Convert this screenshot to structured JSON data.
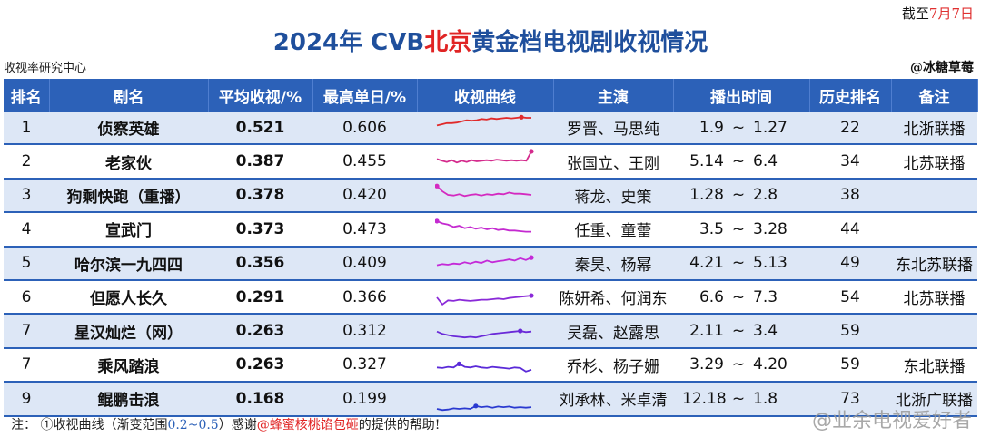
{
  "deadline": {
    "prefix": "截至",
    "date": "7月7日"
  },
  "title": {
    "part1": "2024年 CVB",
    "highlight": "北京",
    "part2": "黄金档电视剧收视情况"
  },
  "source": "收视率研究中心",
  "author": "@冰糖草莓",
  "headers": [
    "排名",
    "剧名",
    "平均收视/%",
    "最高单日/%",
    "收视曲线",
    "主演",
    "播出时间",
    "历史排名",
    "备注"
  ],
  "rows": [
    {
      "rank": "1",
      "name": "侦察英雄",
      "avg": "0.521",
      "max": "0.606",
      "actors": "罗晋、马思纯",
      "start": "1.9",
      "tilde": "~",
      "end": "1.27",
      "hist": "22",
      "note": "北浙联播",
      "color": "#e02a2a",
      "curve": [
        0.36,
        0.38,
        0.4,
        0.4,
        0.41,
        0.43,
        0.45,
        0.44,
        0.45,
        0.47,
        0.46,
        0.48,
        0.47,
        0.48,
        0.49,
        0.48,
        0.49,
        0.5,
        0.49,
        0.49
      ]
    },
    {
      "rank": "2",
      "name": "老家伙",
      "avg": "0.387",
      "max": "0.455",
      "actors": "张国立、王刚",
      "start": "5.14",
      "tilde": "~",
      "end": "6.4",
      "hist": "34",
      "note": "北苏联播",
      "color": "#d42a8c",
      "curve": [
        0.36,
        0.33,
        0.31,
        0.34,
        0.3,
        0.33,
        0.31,
        0.34,
        0.32,
        0.33,
        0.34,
        0.33,
        0.35,
        0.34,
        0.33,
        0.34,
        0.33,
        0.34,
        0.33,
        0.49
      ]
    },
    {
      "rank": "3",
      "name": "狗剩快跑（重播）",
      "avg": "0.378",
      "max": "0.420",
      "actors": "蒋龙、史策",
      "start": "1.28",
      "tilde": "~",
      "end": "2.8",
      "hist": "38",
      "note": "",
      "color": "#d42ac0",
      "curve": [
        0.47,
        0.38,
        0.32,
        0.31,
        0.33,
        0.3,
        0.32,
        0.33,
        0.31,
        0.33,
        0.32,
        0.34,
        0.33,
        0.36,
        0.34,
        0.34,
        0.33,
        0.32
      ]
    },
    {
      "rank": "4",
      "name": "宣武门",
      "avg": "0.373",
      "max": "0.473",
      "actors": "任重、童蕾",
      "start": "3.5",
      "tilde": "~",
      "end": "3.28",
      "hist": "44",
      "note": "",
      "color": "#c42ad0",
      "curve": [
        0.46,
        0.42,
        0.4,
        0.36,
        0.38,
        0.34,
        0.36,
        0.33,
        0.35,
        0.32,
        0.34,
        0.31,
        0.32,
        0.3,
        0.3,
        0.29,
        0.28,
        0.28
      ]
    },
    {
      "rank": "5",
      "name": "哈尔滨一九四四",
      "avg": "0.356",
      "max": "0.409",
      "actors": "秦昊、杨幂",
      "start": "4.21",
      "tilde": "~",
      "end": "5.13",
      "hist": "49",
      "note": "东北苏联播",
      "color": "#c42ad8",
      "curve": [
        0.28,
        0.3,
        0.29,
        0.31,
        0.3,
        0.33,
        0.31,
        0.34,
        0.32,
        0.36,
        0.33,
        0.35,
        0.36,
        0.38,
        0.36,
        0.4,
        0.37,
        0.41
      ]
    },
    {
      "rank": "6",
      "name": "但愿人长久",
      "avg": "0.291",
      "max": "0.366",
      "actors": "陈妍希、何润东",
      "start": "6.6",
      "tilde": "~",
      "end": "7.3",
      "hist": "54",
      "note": "北苏联播",
      "color": "#8a2ad8",
      "curve": [
        0.32,
        0.2,
        0.27,
        0.26,
        0.28,
        0.27,
        0.26,
        0.27,
        0.28,
        0.28,
        0.29,
        0.3,
        0.29,
        0.31,
        0.32,
        0.33,
        0.34,
        0.35
      ]
    },
    {
      "rank": "7",
      "name": "星汉灿烂（网）",
      "avg": "0.263",
      "max": "0.312",
      "actors": "吴磊、赵露思",
      "start": "2.11",
      "tilde": "~",
      "end": "3.4",
      "hist": "59",
      "note": "",
      "color": "#6a2ad8",
      "curve": [
        0.31,
        0.27,
        0.25,
        0.23,
        0.22,
        0.21,
        0.22,
        0.21,
        0.23,
        0.25,
        0.27,
        0.28,
        0.29,
        0.3,
        0.31,
        0.32,
        0.3,
        0.31
      ]
    },
    {
      "rank": "7",
      "name": "乘风踏浪",
      "avg": "0.263",
      "max": "0.327",
      "actors": "乔杉、杨子姗",
      "start": "3.29",
      "tilde": "~",
      "end": "4.20",
      "hist": "59",
      "note": "东北联播",
      "color": "#5a2ad8",
      "curve": [
        0.27,
        0.26,
        0.28,
        0.27,
        0.33,
        0.28,
        0.27,
        0.29,
        0.27,
        0.26,
        0.28,
        0.27,
        0.26,
        0.25,
        0.27,
        0.26,
        0.2,
        0.23
      ]
    },
    {
      "rank": "9",
      "name": "鲲鹏击浪",
      "avg": "0.168",
      "max": "0.199",
      "actors": "刘承林、米卓清",
      "start": "12.18",
      "tilde": "~",
      "end": "1.8",
      "hist": "73",
      "note": "北浙广联播",
      "color": "#2a3ad0",
      "curve": [
        0.15,
        0.13,
        0.14,
        0.16,
        0.15,
        0.16,
        0.15,
        0.2,
        0.18,
        0.19,
        0.17,
        0.19,
        0.18,
        0.19,
        0.17,
        0.18,
        0.17,
        0.18
      ]
    }
  ],
  "note": {
    "prefix": "注：  ①收视曲线（渐变范围",
    "range": "0.2~0.5",
    "middle": "）感谢",
    "helper": "@蜂蜜核桃馅包砸",
    "suffix": "的提供的帮助!"
  },
  "watermark": "@业余电视爱好者"
}
